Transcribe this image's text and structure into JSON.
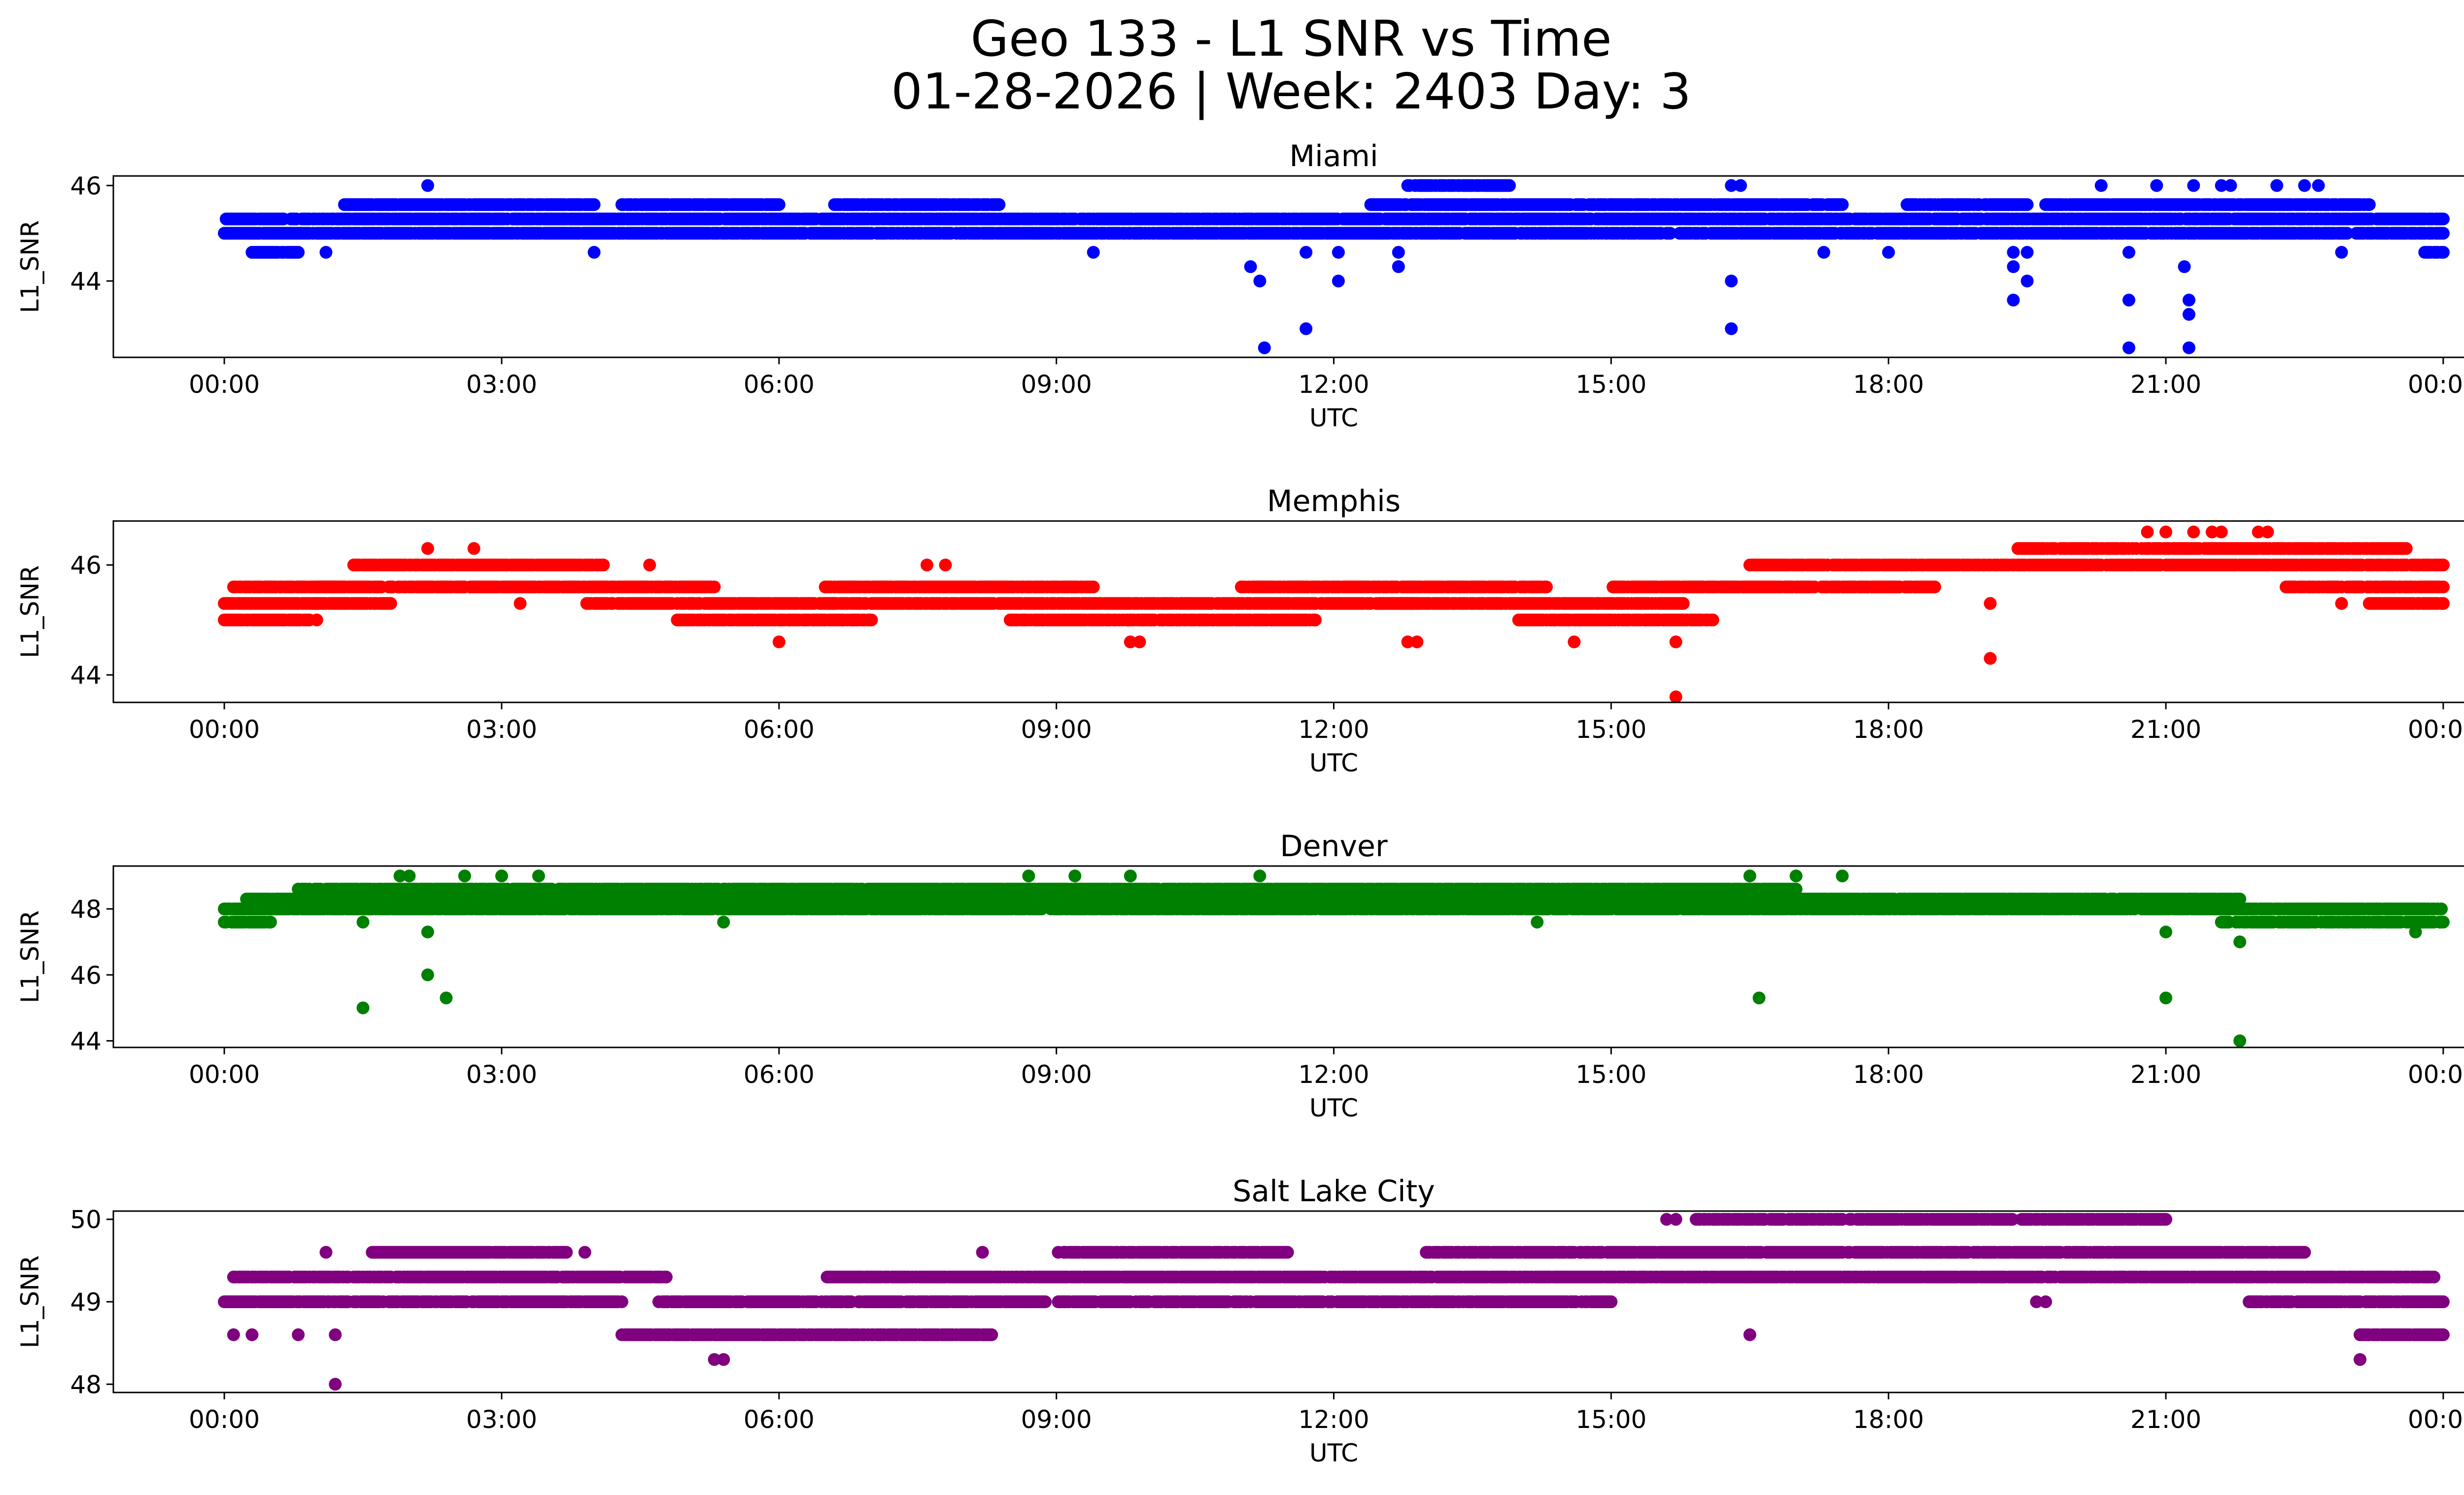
{
  "figure_title_line1": "Geo 133 - L1 SNR vs Time",
  "figure_title_line2": "01-28-2026 | Week: 2403 Day: 3",
  "chart_data": [
    {
      "type": "scatter",
      "title": "Miami",
      "xlabel": "UTC",
      "ylabel": "L1_SNR",
      "color": "#0000ff",
      "xlim_hours": [
        -1.2,
        25.2
      ],
      "ylim": [
        42.4,
        46.2
      ],
      "yticks": [
        44,
        46
      ],
      "xticks": [
        "00:00",
        "03:00",
        "06:00",
        "09:00",
        "12:00",
        "15:00",
        "18:00",
        "21:00",
        "00:00"
      ],
      "bands": [
        {
          "from": 0.0,
          "to": 24.0,
          "levels": [
            45.0,
            45.3
          ]
        },
        {
          "from": 1.3,
          "to": 4.0,
          "levels": [
            45.6
          ]
        },
        {
          "from": 4.3,
          "to": 6.0,
          "levels": [
            45.6
          ]
        },
        {
          "from": 6.6,
          "to": 8.4,
          "levels": [
            45.6
          ]
        },
        {
          "from": 12.4,
          "to": 15.0,
          "levels": [
            45.6
          ]
        },
        {
          "from": 12.8,
          "to": 13.9,
          "levels": [
            46.0
          ]
        },
        {
          "from": 15.0,
          "to": 17.5,
          "levels": [
            45.6
          ]
        },
        {
          "from": 18.2,
          "to": 19.5,
          "levels": [
            45.6
          ]
        },
        {
          "from": 19.7,
          "to": 23.2,
          "levels": [
            45.6
          ]
        },
        {
          "from": 0.3,
          "to": 0.8,
          "levels": [
            44.6
          ]
        },
        {
          "from": 23.8,
          "to": 24.0,
          "levels": [
            44.6
          ]
        }
      ],
      "outliers": [
        [
          2.2,
          46.0
        ],
        [
          1.1,
          44.6
        ],
        [
          4.0,
          44.6
        ],
        [
          9.4,
          44.6
        ],
        [
          11.1,
          44.3
        ],
        [
          11.2,
          44.0
        ],
        [
          11.25,
          42.6
        ],
        [
          11.7,
          43.0
        ],
        [
          11.7,
          44.6
        ],
        [
          12.05,
          44.0
        ],
        [
          12.05,
          44.6
        ],
        [
          12.7,
          44.3
        ],
        [
          12.7,
          44.6
        ],
        [
          16.3,
          44.0
        ],
        [
          16.3,
          43.0
        ],
        [
          16.3,
          46.0
        ],
        [
          16.4,
          46.0
        ],
        [
          17.3,
          44.6
        ],
        [
          18.0,
          44.6
        ],
        [
          19.35,
          44.3
        ],
        [
          19.35,
          43.6
        ],
        [
          19.35,
          44.6
        ],
        [
          19.5,
          44.0
        ],
        [
          19.5,
          44.6
        ],
        [
          20.3,
          46.0
        ],
        [
          20.6,
          43.6
        ],
        [
          20.6,
          42.6
        ],
        [
          20.6,
          44.6
        ],
        [
          20.9,
          46.0
        ],
        [
          21.2,
          44.3
        ],
        [
          21.25,
          43.6
        ],
        [
          21.25,
          43.3
        ],
        [
          21.25,
          42.6
        ],
        [
          21.3,
          46.0
        ],
        [
          21.6,
          46.0
        ],
        [
          21.7,
          46.0
        ],
        [
          22.2,
          46.0
        ],
        [
          22.5,
          46.0
        ],
        [
          22.65,
          46.0
        ],
        [
          22.9,
          44.6
        ]
      ]
    },
    {
      "type": "scatter",
      "title": "Memphis",
      "xlabel": "UTC",
      "ylabel": "L1_SNR",
      "color": "#ff0000",
      "xlim_hours": [
        -1.2,
        25.2
      ],
      "ylim": [
        43.5,
        46.8
      ],
      "yticks": [
        44,
        46
      ],
      "xticks": [
        "00:00",
        "03:00",
        "06:00",
        "09:00",
        "12:00",
        "15:00",
        "18:00",
        "21:00",
        "00:00"
      ],
      "bands": [
        {
          "from": 0.0,
          "to": 1.0,
          "levels": [
            45.0,
            45.3
          ]
        },
        {
          "from": 0.1,
          "to": 1.3,
          "levels": [
            45.6
          ]
        },
        {
          "from": 1.0,
          "to": 1.8,
          "levels": [
            45.3,
            45.6
          ]
        },
        {
          "from": 1.4,
          "to": 4.1,
          "levels": [
            46.0
          ]
        },
        {
          "from": 1.8,
          "to": 5.3,
          "levels": [
            45.6
          ]
        },
        {
          "from": 3.9,
          "to": 6.6,
          "levels": [
            45.3
          ]
        },
        {
          "from": 4.9,
          "to": 7.0,
          "levels": [
            45.0
          ]
        },
        {
          "from": 6.5,
          "to": 9.4,
          "levels": [
            45.6
          ]
        },
        {
          "from": 6.5,
          "to": 12.9,
          "levels": [
            45.3
          ]
        },
        {
          "from": 8.5,
          "to": 11.8,
          "levels": [
            45.0
          ]
        },
        {
          "from": 11.0,
          "to": 14.3,
          "levels": [
            45.6
          ]
        },
        {
          "from": 12.5,
          "to": 15.8,
          "levels": [
            45.3
          ]
        },
        {
          "from": 14.0,
          "to": 16.1,
          "levels": [
            45.0
          ]
        },
        {
          "from": 15.0,
          "to": 18.5,
          "levels": [
            45.6
          ]
        },
        {
          "from": 16.5,
          "to": 19.4,
          "levels": [
            46.0
          ]
        },
        {
          "from": 19.4,
          "to": 23.6,
          "levels": [
            46.3
          ]
        },
        {
          "from": 19.4,
          "to": 24.0,
          "levels": [
            46.0
          ]
        },
        {
          "from": 22.3,
          "to": 24.0,
          "levels": [
            45.6
          ]
        },
        {
          "from": 23.2,
          "to": 24.0,
          "levels": [
            45.3
          ]
        }
      ],
      "outliers": [
        [
          2.2,
          46.3
        ],
        [
          2.7,
          46.3
        ],
        [
          3.2,
          45.3
        ],
        [
          4.6,
          46.0
        ],
        [
          6.0,
          44.6
        ],
        [
          7.6,
          46.0
        ],
        [
          7.8,
          46.0
        ],
        [
          9.8,
          44.6
        ],
        [
          9.9,
          44.6
        ],
        [
          12.8,
          44.6
        ],
        [
          12.9,
          44.6
        ],
        [
          14.6,
          44.6
        ],
        [
          15.7,
          44.6
        ],
        [
          15.7,
          43.6
        ],
        [
          19.1,
          44.3
        ],
        [
          19.1,
          45.3
        ],
        [
          20.8,
          46.6
        ],
        [
          21.0,
          46.6
        ],
        [
          21.3,
          46.6
        ],
        [
          21.5,
          46.6
        ],
        [
          21.6,
          46.6
        ],
        [
          22.0,
          46.6
        ],
        [
          22.1,
          46.6
        ],
        [
          22.9,
          45.3
        ]
      ]
    },
    {
      "type": "scatter",
      "title": "Denver",
      "xlabel": "UTC",
      "ylabel": "L1_SNR",
      "color": "#008000",
      "xlim_hours": [
        -1.2,
        25.2
      ],
      "ylim": [
        43.8,
        49.3
      ],
      "yticks": [
        44,
        46,
        48
      ],
      "xticks": [
        "00:00",
        "03:00",
        "06:00",
        "09:00",
        "12:00",
        "15:00",
        "18:00",
        "21:00",
        "00:00"
      ],
      "bands": [
        {
          "from": 0.0,
          "to": 0.5,
          "levels": [
            47.6,
            48.0
          ]
        },
        {
          "from": 0.2,
          "to": 21.8,
          "levels": [
            48.0,
            48.3
          ]
        },
        {
          "from": 0.8,
          "to": 17.0,
          "levels": [
            48.6
          ]
        },
        {
          "from": 21.6,
          "to": 24.0,
          "levels": [
            47.6,
            48.0
          ]
        }
      ],
      "outliers": [
        [
          0.5,
          47.6
        ],
        [
          1.5,
          45.0
        ],
        [
          1.5,
          47.6
        ],
        [
          1.9,
          49.0
        ],
        [
          2.0,
          49.0
        ],
        [
          2.2,
          47.3
        ],
        [
          2.2,
          46.0
        ],
        [
          2.4,
          45.3
        ],
        [
          2.6,
          49.0
        ],
        [
          3.0,
          49.0
        ],
        [
          3.4,
          49.0
        ],
        [
          5.4,
          47.6
        ],
        [
          8.7,
          49.0
        ],
        [
          9.2,
          49.0
        ],
        [
          9.8,
          49.0
        ],
        [
          11.2,
          49.0
        ],
        [
          14.2,
          47.6
        ],
        [
          16.5,
          49.0
        ],
        [
          16.6,
          45.3
        ],
        [
          17.0,
          49.0
        ],
        [
          17.5,
          49.0
        ],
        [
          21.0,
          47.3
        ],
        [
          21.0,
          45.3
        ],
        [
          21.8,
          47.0
        ],
        [
          21.8,
          44.0
        ],
        [
          23.7,
          47.3
        ]
      ]
    },
    {
      "type": "scatter",
      "title": "Salt Lake City",
      "xlabel": "UTC",
      "ylabel": "L1_SNR",
      "color": "#800080",
      "xlim_hours": [
        -1.2,
        25.2
      ],
      "ylim": [
        47.9,
        50.1
      ],
      "yticks": [
        48,
        49,
        50
      ],
      "xticks": [
        "00:00",
        "03:00",
        "06:00",
        "09:00",
        "12:00",
        "15:00",
        "18:00",
        "21:00",
        "00:00"
      ],
      "bands": [
        {
          "from": 0.0,
          "to": 4.3,
          "levels": [
            49.0
          ]
        },
        {
          "from": 0.1,
          "to": 4.8,
          "levels": [
            49.3
          ]
        },
        {
          "from": 1.6,
          "to": 3.7,
          "levels": [
            49.6
          ]
        },
        {
          "from": 4.3,
          "to": 8.3,
          "levels": [
            48.6
          ]
        },
        {
          "from": 4.7,
          "to": 8.9,
          "levels": [
            49.0
          ]
        },
        {
          "from": 6.5,
          "to": 23.9,
          "levels": [
            49.3
          ]
        },
        {
          "from": 9.0,
          "to": 15.0,
          "levels": [
            49.0
          ]
        },
        {
          "from": 9.0,
          "to": 11.5,
          "levels": [
            49.6
          ]
        },
        {
          "from": 13.0,
          "to": 22.5,
          "levels": [
            49.6
          ]
        },
        {
          "from": 15.9,
          "to": 21.0,
          "levels": [
            50.0
          ]
        },
        {
          "from": 21.9,
          "to": 24.0,
          "levels": [
            49.0
          ]
        },
        {
          "from": 23.1,
          "to": 24.0,
          "levels": [
            48.6
          ]
        }
      ],
      "outliers": [
        [
          0.1,
          48.6
        ],
        [
          0.3,
          48.6
        ],
        [
          0.8,
          48.6
        ],
        [
          1.1,
          49.6
        ],
        [
          1.2,
          48.6
        ],
        [
          1.2,
          48.0
        ],
        [
          3.9,
          49.6
        ],
        [
          5.4,
          48.3
        ],
        [
          5.3,
          48.3
        ],
        [
          8.2,
          49.6
        ],
        [
          15.6,
          50.0
        ],
        [
          15.7,
          50.0
        ],
        [
          16.5,
          48.6
        ],
        [
          16.5,
          49.3
        ],
        [
          19.6,
          49.0
        ],
        [
          19.7,
          49.0
        ],
        [
          23.1,
          48.3
        ]
      ]
    }
  ]
}
